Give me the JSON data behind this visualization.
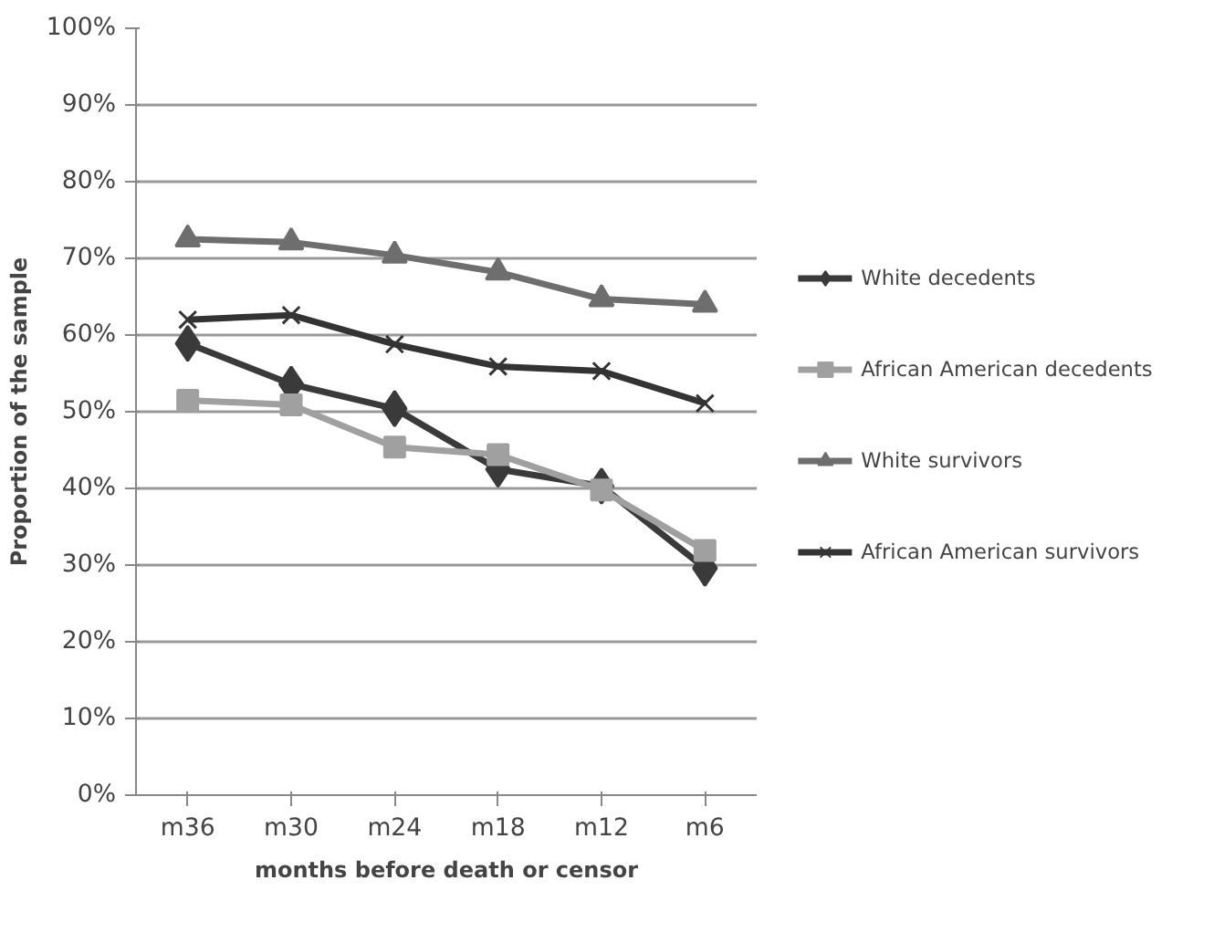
{
  "chart_data": {
    "type": "line",
    "xlabel": "months before death or censor",
    "ylabel": "Proportion of the sample",
    "categories": [
      "m36",
      "m30",
      "m24",
      "m18",
      "m12",
      "m6"
    ],
    "series": [
      {
        "name": "White decedents",
        "color": "#3a3a3a",
        "marker": "diamond",
        "values": [
          58.9,
          53.6,
          50.4,
          42.5,
          40.3,
          29.6
        ]
      },
      {
        "name": "African American decedents",
        "color": "#a0a0a0",
        "marker": "square",
        "values": [
          51.5,
          50.9,
          45.4,
          44.4,
          39.8,
          31.9
        ]
      },
      {
        "name": "White survivors",
        "color": "#6e6e6e",
        "marker": "triangle",
        "values": [
          72.5,
          72.1,
          70.4,
          68.2,
          64.7,
          64.0
        ]
      },
      {
        "name": "African American survivors",
        "color": "#333333",
        "marker": "cross",
        "values": [
          62.0,
          62.6,
          58.8,
          55.9,
          55.3,
          51.1
        ]
      }
    ],
    "ylim": [
      0,
      100
    ],
    "yticks": [
      {
        "value": 0,
        "label": "0%"
      },
      {
        "value": 10,
        "label": "10%"
      },
      {
        "value": 20,
        "label": "20%"
      },
      {
        "value": 30,
        "label": "30%"
      },
      {
        "value": 40,
        "label": "40%"
      },
      {
        "value": 50,
        "label": "50%"
      },
      {
        "value": 60,
        "label": "60%"
      },
      {
        "value": 70,
        "label": "70%"
      },
      {
        "value": 80,
        "label": "80%"
      },
      {
        "value": 90,
        "label": "90%"
      },
      {
        "value": 100,
        "label": "100%"
      }
    ],
    "grid": "y",
    "legend": "right",
    "line_style": "solid"
  }
}
